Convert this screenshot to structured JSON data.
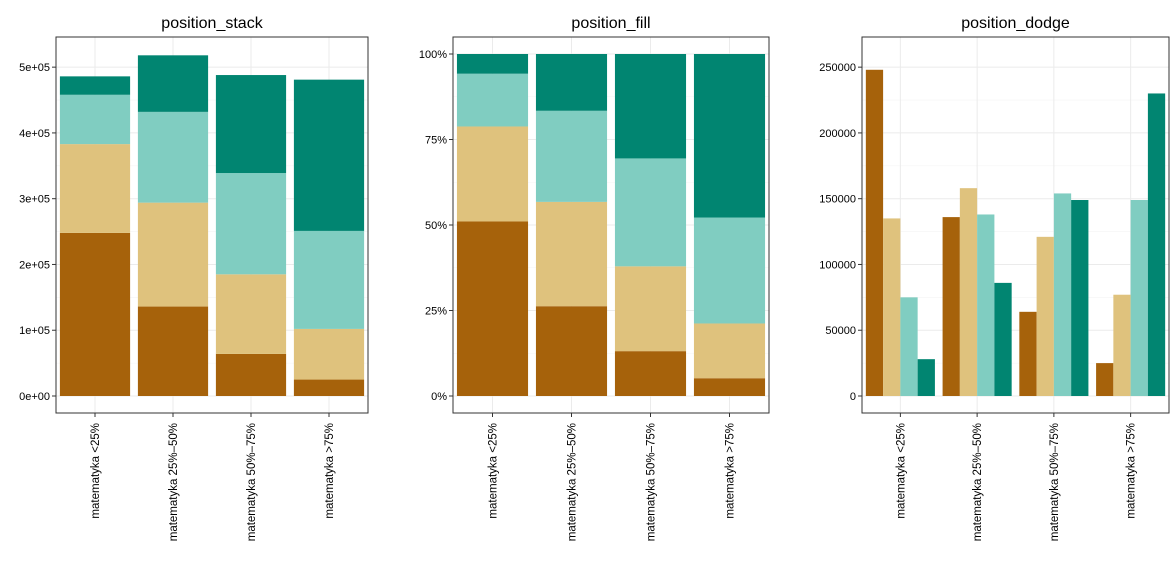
{
  "palette": [
    "#a6620b",
    "#dfc27d",
    "#80cdc1",
    "#018571"
  ],
  "categories": [
    "matematyka <25%",
    "matematyka 25%–50%",
    "matematyka 50%–75%",
    "matematyka >75%"
  ],
  "chart_data": [
    {
      "type": "bar",
      "title": "position_stack",
      "position": "stack",
      "categories": [
        "matematyka <25%",
        "matematyka 25%–50%",
        "matematyka 50%–75%",
        "matematyka >75%"
      ],
      "series": [
        {
          "values": [
            248000,
            136000,
            64000,
            25000
          ]
        },
        {
          "values": [
            135000,
            158000,
            121000,
            77000
          ]
        },
        {
          "values": [
            75000,
            138000,
            154000,
            149000
          ]
        },
        {
          "values": [
            28000,
            86000,
            149000,
            230000
          ]
        }
      ],
      "ylim": [
        0,
        520000
      ],
      "yticks": [
        0,
        100000,
        200000,
        300000,
        400000,
        500000
      ],
      "ytick_labels": [
        "0e+00",
        "1e+05",
        "2e+05",
        "3e+05",
        "4e+05",
        "5e+05"
      ],
      "grid": true
    },
    {
      "type": "bar",
      "title": "position_fill",
      "position": "fill",
      "categories": [
        "matematyka <25%",
        "matematyka 25%–50%",
        "matematyka 50%–75%",
        "matematyka >75%"
      ],
      "series": [
        {
          "values": [
            248000,
            136000,
            64000,
            25000
          ]
        },
        {
          "values": [
            135000,
            158000,
            121000,
            77000
          ]
        },
        {
          "values": [
            75000,
            138000,
            154000,
            149000
          ]
        },
        {
          "values": [
            28000,
            86000,
            149000,
            230000
          ]
        }
      ],
      "ylim": [
        0,
        1
      ],
      "yticks": [
        0,
        0.25,
        0.5,
        0.75,
        1
      ],
      "ytick_labels": [
        "0%",
        "25%",
        "50%",
        "75%",
        "100%"
      ],
      "grid": true
    },
    {
      "type": "bar",
      "title": "position_dodge",
      "position": "dodge",
      "categories": [
        "matematyka <25%",
        "matematyka 25%–50%",
        "matematyka 50%–75%",
        "matematyka >75%"
      ],
      "series": [
        {
          "values": [
            248000,
            136000,
            64000,
            25000
          ]
        },
        {
          "values": [
            135000,
            158000,
            121000,
            77000
          ]
        },
        {
          "values": [
            75000,
            138000,
            154000,
            149000
          ]
        },
        {
          "values": [
            28000,
            86000,
            149000,
            230000
          ]
        }
      ],
      "ylim": [
        0,
        260000
      ],
      "yticks": [
        0,
        50000,
        100000,
        150000,
        200000,
        250000
      ],
      "ytick_labels": [
        "0",
        "50000",
        "100000",
        "150000",
        "200000",
        "250000"
      ],
      "grid": true
    }
  ]
}
